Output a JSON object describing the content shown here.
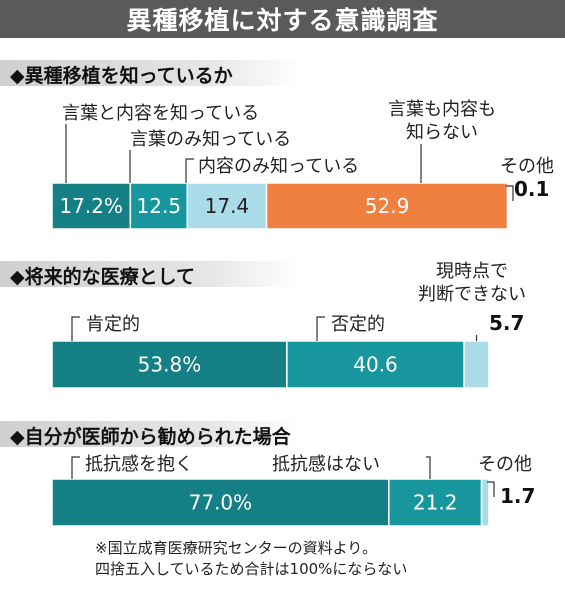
{
  "title": "異種移植に対する意識調査",
  "colors": {
    "teal_dark": "#157f86",
    "teal_mid": "#17969e",
    "light_blue": "#a9dce8",
    "orange": "#f08040",
    "title_bg": "#5a5a5a"
  },
  "chart_data": [
    {
      "type": "bar",
      "orientation": "horizontal-stacked",
      "title": "異種移植を知っているか",
      "unit": "%",
      "series": [
        {
          "name": "言葉と内容を知っている",
          "value": 17.2,
          "label": "17.2%",
          "color": "#157f86"
        },
        {
          "name": "言葉のみ知っている",
          "value": 12.5,
          "label": "12.5",
          "color": "#17969e"
        },
        {
          "name": "内容のみ知っている",
          "value": 17.4,
          "label": "17.4",
          "color": "#a9dce8"
        },
        {
          "name": "言葉も内容も\n知らない",
          "value": 52.9,
          "label": "52.9",
          "color": "#f08040"
        },
        {
          "name": "その他",
          "value": 0.1,
          "label": "0.1",
          "color": "#f08040"
        }
      ]
    },
    {
      "type": "bar",
      "orientation": "horizontal-stacked",
      "title": "将来的な医療として",
      "unit": "%",
      "series": [
        {
          "name": "肯定的",
          "value": 53.8,
          "label": "53.8%",
          "color": "#157f86"
        },
        {
          "name": "否定的",
          "value": 40.6,
          "label": "40.6",
          "color": "#17969e"
        },
        {
          "name": "現時点で\n判断できない",
          "value": 5.7,
          "label": "5.7",
          "color": "#a9dce8"
        }
      ]
    },
    {
      "type": "bar",
      "orientation": "horizontal-stacked",
      "title": "自分が医師から勧められた場合",
      "unit": "%",
      "series": [
        {
          "name": "抵抗感を抱く",
          "value": 77.0,
          "label": "77.0%",
          "color": "#157f86"
        },
        {
          "name": "抵抗感はない",
          "value": 21.2,
          "label": "21.2",
          "color": "#17969e"
        },
        {
          "name": "その他",
          "value": 1.7,
          "label": "1.7",
          "color": "#a9dce8"
        }
      ]
    }
  ],
  "footnote": [
    "※国立成育医療研究センターの資料より。",
    "四捨五入しているため合計は100%にならない"
  ]
}
